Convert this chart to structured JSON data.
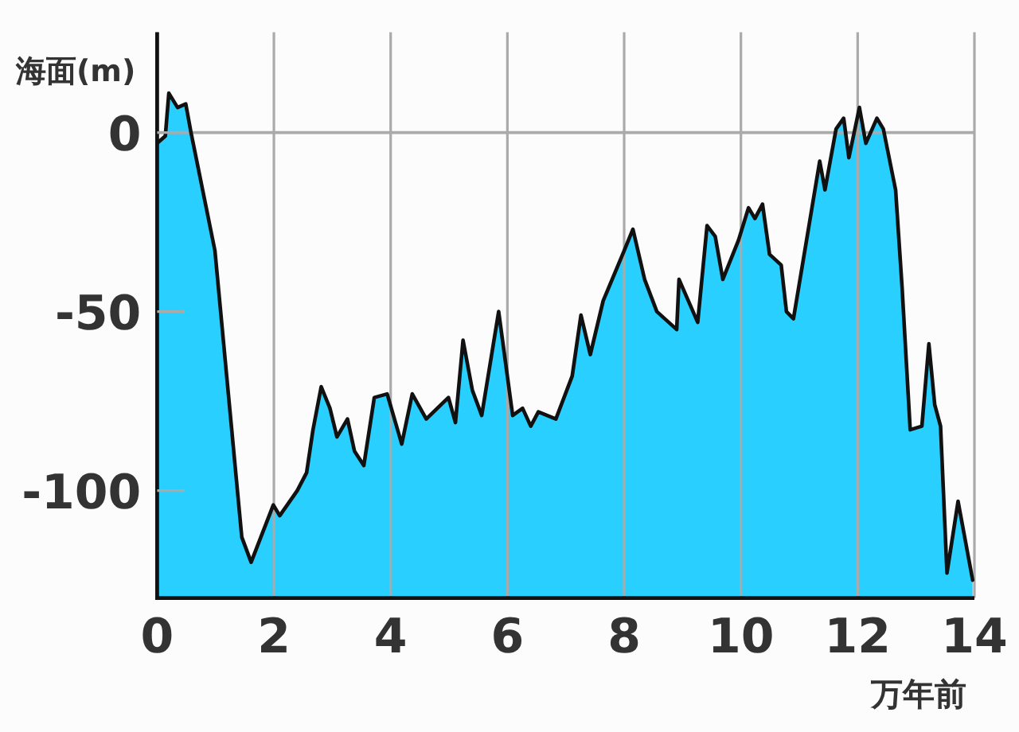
{
  "chart_data": {
    "type": "area",
    "ylabel": "海面(m)",
    "xlabel": "万年前",
    "x": [
      0,
      0.14,
      0.2,
      0.35,
      0.49,
      0.58,
      0.99,
      1.45,
      1.61,
      1.99,
      2.1,
      2.4,
      2.56,
      2.67,
      2.81,
      2.96,
      3.08,
      3.26,
      3.38,
      3.54,
      3.72,
      3.94,
      4.19,
      4.37,
      4.61,
      4.99,
      5.11,
      5.24,
      5.4,
      5.56,
      5.85,
      6.09,
      6.26,
      6.4,
      6.53,
      6.83,
      7.11,
      7.26,
      7.42,
      7.64,
      8.0,
      8.15,
      8.35,
      8.56,
      8.9,
      8.94,
      9.26,
      9.42,
      9.56,
      9.69,
      9.96,
      10.13,
      10.24,
      10.37,
      10.49,
      10.69,
      10.78,
      10.9,
      11.35,
      11.44,
      11.63,
      11.76,
      11.85,
      12.03,
      12.14,
      12.33,
      12.44,
      12.65,
      12.76,
      12.9,
      13.1,
      13.22,
      13.32,
      13.42,
      13.53,
      13.72,
      13.97
    ],
    "values": [
      -3,
      -1,
      11,
      7,
      8,
      0,
      -33,
      -113,
      -120,
      -104,
      -107,
      -100,
      -95,
      -83,
      -71,
      -77,
      -85,
      -80,
      -89,
      -93,
      -74,
      -73,
      -87,
      -73,
      -80,
      -74,
      -81,
      -58,
      -72,
      -79,
      -50,
      -79,
      -77,
      -82,
      -78,
      -80,
      -68,
      -51,
      -62,
      -47,
      -33,
      -27,
      -41,
      -50,
      -55,
      -41,
      -53,
      -26,
      -29,
      -41,
      -30,
      -21,
      -24,
      -20,
      -34,
      -37,
      -50,
      -52,
      -8,
      -16,
      1,
      4,
      -7,
      7,
      -3,
      4,
      1,
      -16,
      -43,
      -83,
      -82,
      -59,
      -76,
      -82,
      -123,
      -103,
      -125
    ],
    "color": "#29d0ff",
    "xlim": [
      0,
      14
    ],
    "xticks": [
      0,
      2,
      4,
      6,
      8,
      10,
      12,
      14
    ],
    "ylim": [
      -130,
      28
    ],
    "yticks": [
      -100,
      -50,
      0
    ],
    "grid": "x",
    "ref_lines": [
      {
        "axis": "y",
        "value": 0,
        "color": "#aaaaaa"
      }
    ]
  }
}
